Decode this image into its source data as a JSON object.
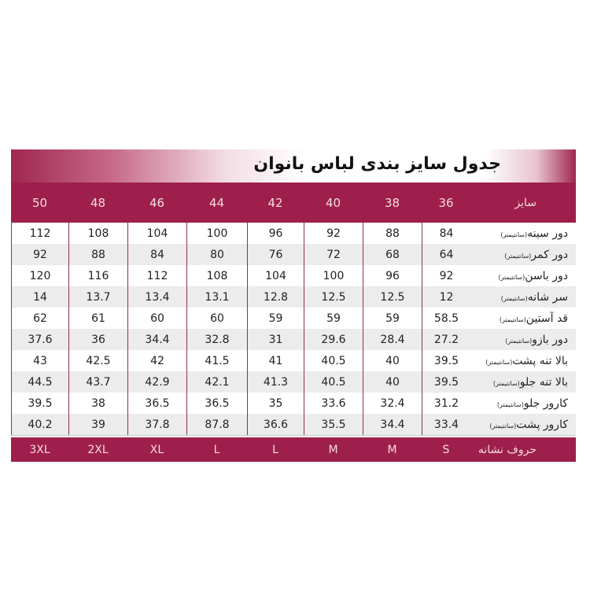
{
  "title": "جدول سایز بندی لباس بانوان",
  "unit": "(سانتیمتر)",
  "header": {
    "label": "سایز",
    "sizes": [
      "36",
      "38",
      "40",
      "42",
      "44",
      "46",
      "48",
      "50"
    ]
  },
  "rows": [
    {
      "label": "دور سینه",
      "values": [
        "84",
        "88",
        "92",
        "96",
        "100",
        "104",
        "108",
        "112"
      ]
    },
    {
      "label": "دور کمر",
      "values": [
        "64",
        "68",
        "72",
        "76",
        "80",
        "84",
        "88",
        "92"
      ]
    },
    {
      "label": "دور باسن",
      "values": [
        "92",
        "96",
        "100",
        "104",
        "108",
        "112",
        "116",
        "120"
      ]
    },
    {
      "label": "سر شانه",
      "values": [
        "12",
        "12.5",
        "12.5",
        "12.8",
        "13.1",
        "13.4",
        "13.7",
        "14"
      ]
    },
    {
      "label": "قد آستین",
      "values": [
        "58.5",
        "59",
        "59",
        "59",
        "60",
        "60",
        "61",
        "62"
      ]
    },
    {
      "label": "دور بازو",
      "values": [
        "27.2",
        "28.4",
        "29.6",
        "31",
        "32.8",
        "34.4",
        "36",
        "37.6"
      ]
    },
    {
      "label": "بالا تنه پشت",
      "values": [
        "39.5",
        "40",
        "40.5",
        "41",
        "41.5",
        "42",
        "42.5",
        "43"
      ]
    },
    {
      "label": "بالا تنه جلو",
      "values": [
        "39.5",
        "40",
        "40.5",
        "41.3",
        "42.1",
        "42.9",
        "43.7",
        "44.5"
      ]
    },
    {
      "label": "کارور جلو",
      "values": [
        "31.2",
        "32.4",
        "33.6",
        "35",
        "36.5",
        "36.5",
        "38",
        "39.5"
      ]
    },
    {
      "label": "کارور پشت",
      "values": [
        "33.4",
        "34.4",
        "35.5",
        "36.6",
        "87.8",
        "37.8",
        "39",
        "40.2"
      ]
    }
  ],
  "footer": {
    "label": "حروف نشانه",
    "letters": [
      "S",
      "M",
      "M",
      "L",
      "L",
      "XL",
      "2XL",
      "3XL"
    ]
  },
  "colors": {
    "accent": "#9e1f4b",
    "row_alt": "#ececec"
  }
}
